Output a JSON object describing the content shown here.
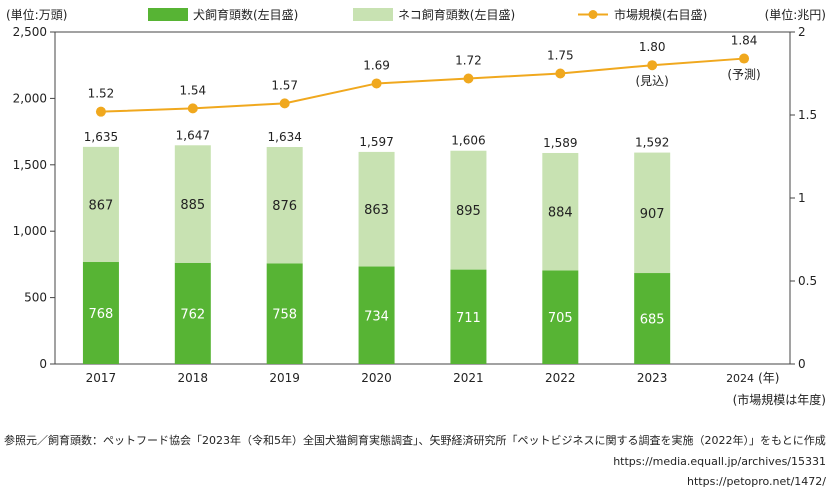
{
  "chart_data": {
    "type": "bar+line",
    "categories": [
      "2017",
      "2018",
      "2019",
      "2020",
      "2021",
      "2022",
      "2023",
      "2024"
    ],
    "x_unit": "(年)",
    "series": [
      {
        "name": "犬飼育頭数(左目盛)",
        "kind": "stacked-bar",
        "axis": "left",
        "color": "#57b434",
        "values": [
          768,
          762,
          758,
          734,
          711,
          705,
          685,
          null
        ]
      },
      {
        "name": "ネコ飼育頭数(左目盛)",
        "kind": "stacked-bar",
        "axis": "left",
        "color": "#c8e2b2",
        "values": [
          867,
          885,
          876,
          863,
          895,
          884,
          907,
          null
        ]
      },
      {
        "name": "市場規模(右目盛)",
        "kind": "line",
        "axis": "right",
        "color": "#f0a81e",
        "values": [
          1.52,
          1.54,
          1.57,
          1.69,
          1.72,
          1.75,
          1.8,
          1.84
        ]
      }
    ],
    "totals": [
      1635,
      1647,
      1634,
      1597,
      1606,
      1589,
      1592,
      null
    ],
    "total_labels": [
      "1,635",
      "1,647",
      "1,634",
      "1,597",
      "1,606",
      "1,589",
      "1,592",
      ""
    ],
    "line_labels": [
      "1.52",
      "1.54",
      "1.57",
      "1.69",
      "1.72",
      "1.75",
      "1.80",
      "1.84"
    ],
    "line_notes": [
      "",
      "",
      "",
      "",
      "",
      "",
      "(見込)",
      "(予測)"
    ],
    "left_axis": {
      "unit": "(単位:万頭)",
      "range": [
        0,
        2500
      ],
      "ticks": [
        0,
        500,
        1000,
        1500,
        2000,
        2500
      ],
      "tick_labels": [
        "0",
        "500",
        "1,000",
        "1,500",
        "2,000",
        "2,500"
      ]
    },
    "right_axis": {
      "unit": "(単位:兆円)",
      "range": [
        0,
        2
      ],
      "ticks": [
        0,
        0.5,
        1,
        1.5,
        2
      ],
      "tick_labels": [
        "0",
        "0.5",
        "1",
        "1.5",
        "2"
      ]
    },
    "x_note": "(市場規模は年度)",
    "legend_position": "top"
  },
  "source": {
    "line1": "参照元／飼育頭数：ペットフード協会「2023年（令和5年）全国犬猫飼育実態調査」、矢野経済研究所「ペットビジネスに関する調査を実施（2022年）」をもとに作成",
    "line2": "https://media.equall.jp/archives/15331",
    "line3": "https://petopro.net/1472/"
  }
}
